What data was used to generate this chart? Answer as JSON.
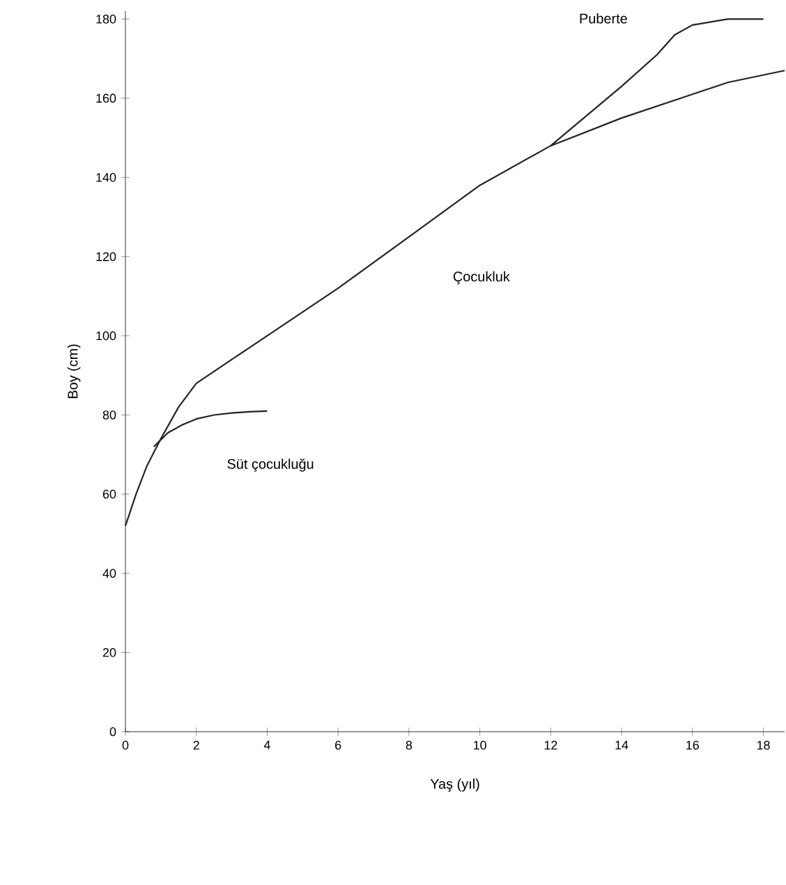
{
  "chart_data": {
    "type": "line",
    "xlabel": "Yaş (yıl)",
    "ylabel": "Boy (cm)",
    "xlim": [
      0,
      18.6
    ],
    "ylim": [
      0,
      182
    ],
    "xticks": [
      0,
      2,
      4,
      6,
      8,
      10,
      12,
      14,
      16,
      18
    ],
    "yticks": [
      0,
      20,
      40,
      60,
      80,
      100,
      120,
      140,
      160,
      180
    ],
    "grid": false,
    "marker": "none",
    "line_style": "solid",
    "series": [
      {
        "color": "#222222",
        "x": [
          0,
          0.3,
          0.6,
          1,
          1.5,
          2,
          3,
          4,
          6,
          8,
          10,
          12,
          14,
          16,
          17,
          18.6
        ],
        "values": [
          52,
          60,
          67,
          74,
          82,
          88,
          94,
          100,
          112,
          125,
          138,
          148,
          155,
          161,
          164,
          167
        ]
      },
      {
        "color": "#222222",
        "x": [
          0.8,
          1.2,
          1.6,
          2,
          2.5,
          3,
          3.5,
          4
        ],
        "values": [
          72,
          75.5,
          77.5,
          79,
          80,
          80.5,
          80.8,
          81
        ]
      },
      {
        "color": "#222222",
        "x": [
          12,
          13,
          14,
          15,
          15.5,
          16,
          17,
          18
        ],
        "values": [
          148,
          155.5,
          163,
          171,
          176,
          178.5,
          180,
          180
        ]
      }
    ],
    "annotations": [
      "Puberte",
      "Çocukluk",
      "Süt çocukluğu"
    ]
  }
}
